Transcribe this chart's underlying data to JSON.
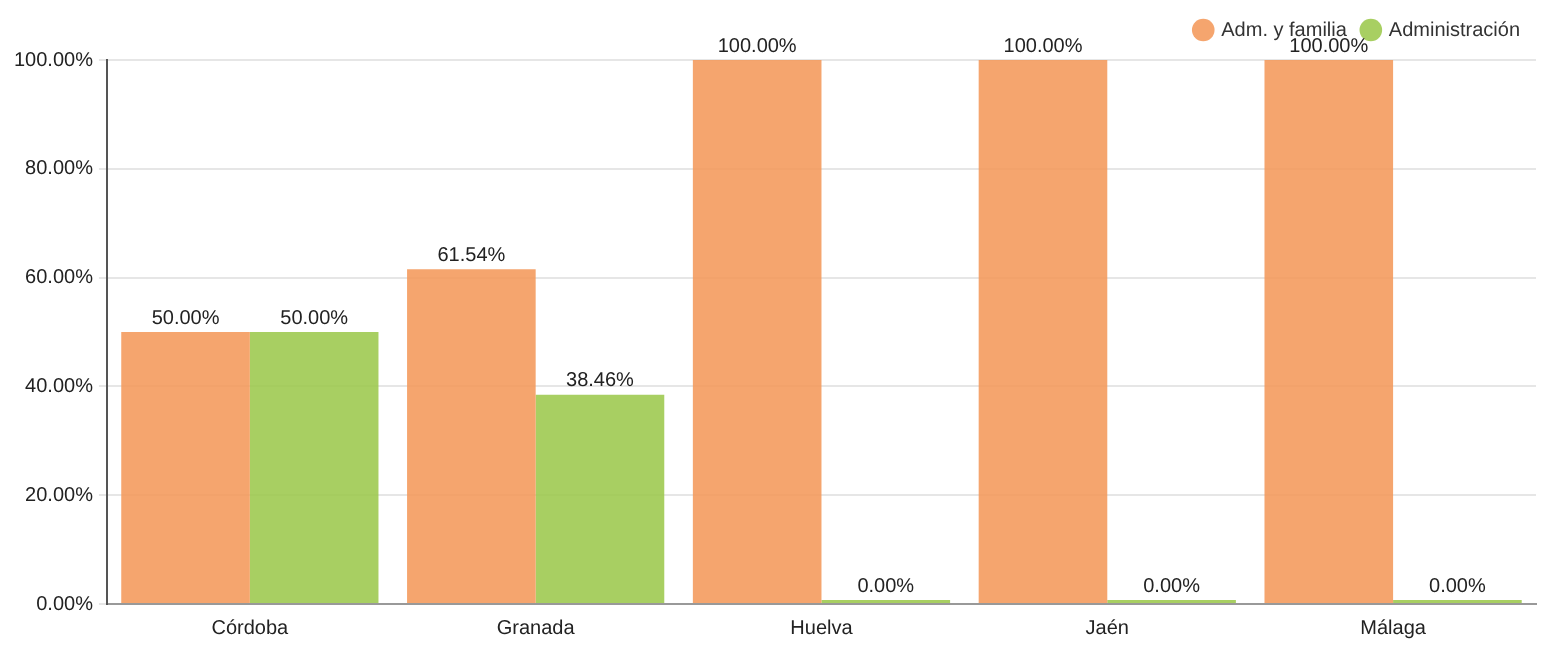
{
  "chart_data": {
    "type": "bar",
    "categories": [
      "Córdoba",
      "Granada",
      "Huelva",
      "Jaén",
      "Málaga"
    ],
    "series": [
      {
        "name": "Adm. y familia",
        "color": "#f4995a",
        "values": [
          50,
          61.54,
          100,
          100,
          100
        ],
        "value_labels": [
          "50.00%",
          "61.54%",
          "100.00%",
          "100.00%",
          "100.00%"
        ]
      },
      {
        "name": "Administración",
        "color": "#9cc84c",
        "values": [
          50,
          38.46,
          0,
          0,
          0
        ],
        "value_labels": [
          "50.00%",
          "38.46%",
          "0.00%",
          "0.00%",
          "0.00%"
        ]
      }
    ],
    "ylim": [
      0,
      100
    ],
    "yticks": [
      {
        "value": 0,
        "label": "0.00%"
      },
      {
        "value": 20,
        "label": "20.00%"
      },
      {
        "value": 40,
        "label": "40.00%"
      },
      {
        "value": 60,
        "label": "60.00%"
      },
      {
        "value": 80,
        "label": "80.00%"
      },
      {
        "value": 100,
        "label": "100.00%"
      }
    ],
    "grid": "y",
    "legend": "top right",
    "marker": "circle"
  }
}
